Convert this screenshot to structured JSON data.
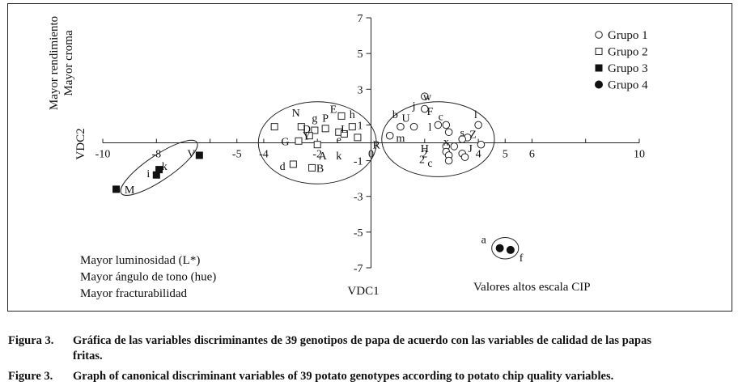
{
  "chart_data": {
    "type": "scatter",
    "xlabel": "VDC1",
    "ylabel": "VDC2",
    "xlim": [
      -10,
      10
    ],
    "ylim": [
      -7,
      7
    ],
    "x_ticks": [
      {
        "v": -10,
        "label": "-10"
      },
      {
        "v": -8,
        "label": "-8"
      },
      {
        "v": -6,
        "label": ""
      },
      {
        "v": -5,
        "label": "-5"
      },
      {
        "v": -4,
        "label": "-4"
      },
      {
        "v": -2,
        "label": "-2"
      },
      {
        "v": 0,
        "label": "0"
      },
      {
        "v": 2,
        "label": "2"
      },
      {
        "v": 4,
        "label": "4"
      },
      {
        "v": 5,
        "label": "5"
      },
      {
        "v": 6,
        "label": "6"
      },
      {
        "v": 8,
        "label": ""
      },
      {
        "v": 10,
        "label": "10"
      }
    ],
    "y_ticks": [
      {
        "v": 7,
        "label": "7"
      },
      {
        "v": 5,
        "label": "5"
      },
      {
        "v": 3,
        "label": "3"
      },
      {
        "v": 1,
        "label": "1"
      },
      {
        "v": -1,
        "label": "-1"
      },
      {
        "v": -3,
        "label": "-3"
      },
      {
        "v": -5,
        "label": "-5"
      },
      {
        "v": -7,
        "label": "-7"
      }
    ],
    "legend_position": "top-right",
    "legend": [
      {
        "name": "Grupo 1",
        "marker": "open-circle"
      },
      {
        "name": "Grupo 2",
        "marker": "open-square"
      },
      {
        "name": "Grupo 3",
        "marker": "filled-square"
      },
      {
        "name": "Grupo 4",
        "marker": "filled-circle"
      }
    ],
    "series": [
      {
        "name": "Grupo 1",
        "marker": "open-circle",
        "points": [
          {
            "x": 2.0,
            "y": 1.9
          },
          {
            "x": 2.0,
            "y": 2.6
          },
          {
            "x": 1.1,
            "y": 0.9
          },
          {
            "x": 1.6,
            "y": 0.9
          },
          {
            "x": 0.7,
            "y": 0.4
          },
          {
            "x": 2.5,
            "y": 1.0
          },
          {
            "x": 2.8,
            "y": 1.0
          },
          {
            "x": 2.9,
            "y": 0.6
          },
          {
            "x": 4.0,
            "y": 1.0
          },
          {
            "x": 3.6,
            "y": 0.3
          },
          {
            "x": 3.4,
            "y": 0.2
          },
          {
            "x": 4.1,
            "y": -0.1
          },
          {
            "x": 3.1,
            "y": -0.2
          },
          {
            "x": 2.8,
            "y": -0.2
          },
          {
            "x": 2.8,
            "y": -0.5
          },
          {
            "x": 2.9,
            "y": -0.7
          },
          {
            "x": 3.4,
            "y": -0.6
          },
          {
            "x": 3.5,
            "y": -0.8
          },
          {
            "x": 2.9,
            "y": -1.0
          }
        ]
      },
      {
        "name": "Grupo 2",
        "marker": "open-square",
        "points": [
          {
            "x": -3.6,
            "y": 0.9
          },
          {
            "x": -2.6,
            "y": 0.9
          },
          {
            "x": -2.1,
            "y": 0.7
          },
          {
            "x": -1.7,
            "y": 0.8
          },
          {
            "x": -1.1,
            "y": 1.5
          },
          {
            "x": -0.7,
            "y": 0.9
          },
          {
            "x": -1.2,
            "y": 0.6
          },
          {
            "x": -1.0,
            "y": 0.5
          },
          {
            "x": -2.3,
            "y": 0.4
          },
          {
            "x": -0.5,
            "y": 0.3
          },
          {
            "x": -2.7,
            "y": 0.1
          },
          {
            "x": -2.0,
            "y": -0.1
          },
          {
            "x": -2.9,
            "y": -1.2
          },
          {
            "x": -2.2,
            "y": -1.4
          }
        ]
      },
      {
        "name": "Grupo 3",
        "marker": "filled-square",
        "points": [
          {
            "x": -6.4,
            "y": -0.7
          },
          {
            "x": -7.9,
            "y": -1.5
          },
          {
            "x": -8.0,
            "y": -1.8
          },
          {
            "x": -9.5,
            "y": -2.6
          }
        ]
      },
      {
        "name": "Grupo 4",
        "marker": "filled-circle",
        "points": [
          {
            "x": 4.8,
            "y": -5.9
          },
          {
            "x": 5.2,
            "y": -6.0
          }
        ]
      }
    ],
    "point_labels": [
      {
        "text": "w",
        "x": 2.1,
        "y": 2.6
      },
      {
        "text": "j",
        "x": 1.6,
        "y": 2.1
      },
      {
        "text": "b",
        "x": 0.9,
        "y": 1.6
      },
      {
        "text": "U",
        "x": 1.3,
        "y": 1.4
      },
      {
        "text": "F",
        "x": 2.2,
        "y": 1.8
      },
      {
        "text": "c",
        "x": 2.6,
        "y": 1.5
      },
      {
        "text": "l",
        "x": 3.9,
        "y": 1.6
      },
      {
        "text": "l",
        "x": 2.2,
        "y": 0.9
      },
      {
        "text": "s",
        "x": 3.4,
        "y": 0.6
      },
      {
        "text": "Z",
        "x": 3.8,
        "y": 0.5
      },
      {
        "text": "m",
        "x": 1.1,
        "y": 0.3
      },
      {
        "text": "R",
        "x": 0.2,
        "y": -0.1
      },
      {
        "text": "H",
        "x": 2.0,
        "y": -0.3
      },
      {
        "text": "x",
        "x": 2.8,
        "y": 0.1
      },
      {
        "text": "J",
        "x": 3.7,
        "y": -0.3
      },
      {
        "text": "2",
        "x": 1.9,
        "y": -0.9
      },
      {
        "text": "c",
        "x": 2.2,
        "y": -1.1
      },
      {
        "text": "N",
        "x": -2.8,
        "y": 1.7
      },
      {
        "text": "E",
        "x": -1.4,
        "y": 1.9
      },
      {
        "text": "g",
        "x": -2.1,
        "y": 1.4
      },
      {
        "text": "P",
        "x": -1.7,
        "y": 1.4
      },
      {
        "text": "h",
        "x": -0.7,
        "y": 1.6
      },
      {
        "text": "D",
        "x": -2.4,
        "y": 0.8
      },
      {
        "text": "L",
        "x": -1.0,
        "y": 0.8
      },
      {
        "text": "Y",
        "x": -2.4,
        "y": 0.4
      },
      {
        "text": "G",
        "x": -3.2,
        "y": 0.1
      },
      {
        "text": "e",
        "x": -1.2,
        "y": 0.2
      },
      {
        "text": "k",
        "x": -1.2,
        "y": -0.7
      },
      {
        "text": "A",
        "x": -1.8,
        "y": -0.7
      },
      {
        "text": "d",
        "x": -3.3,
        "y": -1.3
      },
      {
        "text": "B",
        "x": -1.9,
        "y": -1.4
      },
      {
        "text": "V",
        "x": -6.7,
        "y": -0.6
      },
      {
        "text": "k",
        "x": -7.7,
        "y": -1.3
      },
      {
        "text": "i",
        "x": -8.3,
        "y": -1.7
      },
      {
        "text": "M",
        "x": -9.0,
        "y": -2.6
      },
      {
        "text": "a",
        "x": 4.2,
        "y": -5.4
      },
      {
        "text": "f",
        "x": 5.6,
        "y": -6.4
      }
    ],
    "annotations": {
      "y_positive_lines": [
        "Mayor rendimiento",
        "Mayor croma"
      ],
      "x_negative_lines": [
        "Mayor luminosidad (L*)",
        "Mayor ángulo de tono (hue)",
        "Mayor fracturabilidad"
      ],
      "x_positive_y_negative": "Valores altos escala CIP"
    },
    "ellipses": [
      {
        "cx": -7.9,
        "cy": -1.4,
        "rx": 1.7,
        "ry": 0.7,
        "rotate_deg": -34
      },
      {
        "cx": -2.0,
        "cy": 0.0,
        "rx": 2.2,
        "ry": 2.3,
        "rotate_deg": 0
      },
      {
        "cx": 2.5,
        "cy": 0.2,
        "rx": 2.1,
        "ry": 2.1,
        "rotate_deg": 0
      },
      {
        "cx": 5.0,
        "cy": -5.9,
        "rx": 0.5,
        "ry": 0.6,
        "rotate_deg": 0
      }
    ]
  },
  "captions": [
    {
      "number": "Figura 3.",
      "text": "Gráfica de las variables discriminantes de 39 genotipos de papa de acuerdo con las variables de calidad de las papas",
      "continuation": "fritas."
    },
    {
      "number": "Figure 3.",
      "text": "Graph of canonical discriminant variables of 39 potato genotypes according to potato chip quality variables.",
      "continuation": ""
    }
  ]
}
